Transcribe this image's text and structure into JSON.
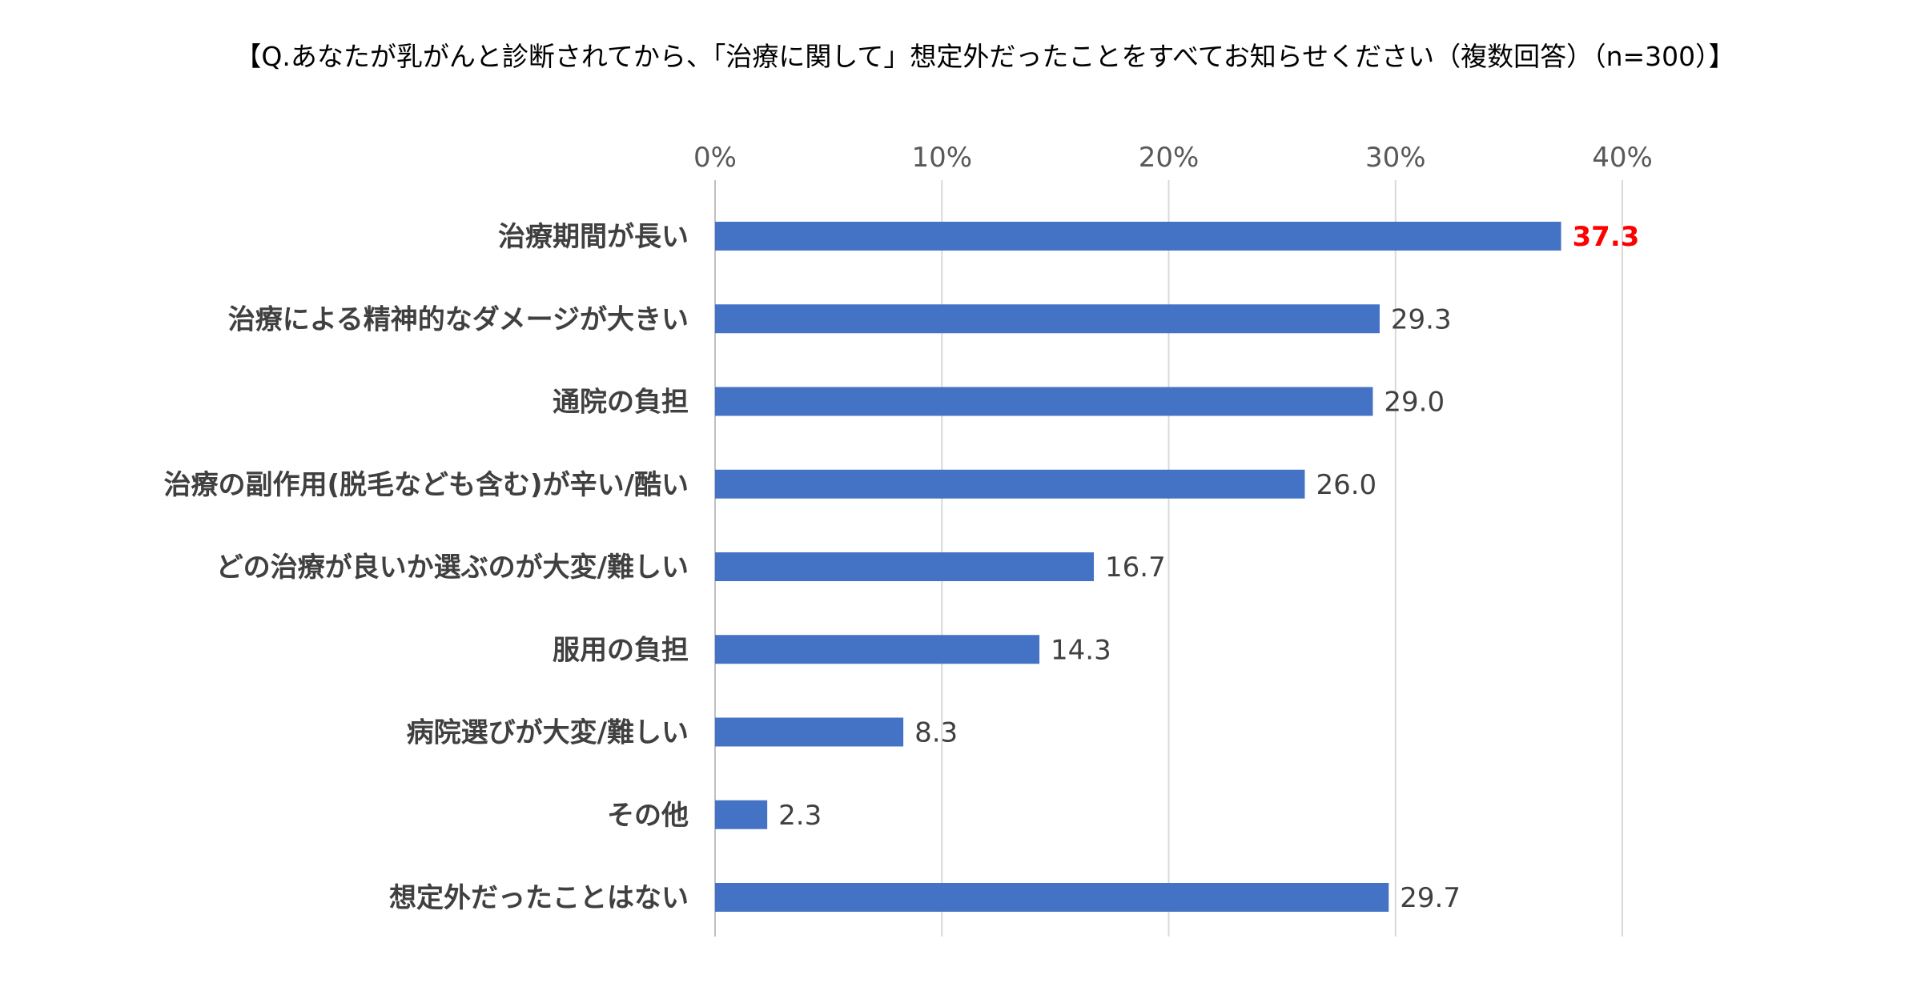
{
  "chart_data": {
    "type": "bar",
    "orientation": "horizontal",
    "title": "【Q.あなたが乳がんと診断されてから、「治療に関して」想定外だったことをすべてお知らせください（複数回答）（n=300）】",
    "categories": [
      "治療期間が長い",
      "治療による精神的なダメージが大きい",
      "通院の負担",
      "治療の副作用(脱毛なども含む)が辛い/酷い",
      "どの治療が良いか選ぶのが大変/難しい",
      "服用の負担",
      "病院選びが大変/難しい",
      "その他",
      "想定外だったことはない"
    ],
    "values": [
      37.3,
      29.3,
      29.0,
      26.0,
      16.7,
      14.3,
      8.3,
      2.3,
      29.7
    ],
    "value_labels": [
      "37.3",
      "29.3",
      "29.0",
      "26.0",
      "16.7",
      "14.3",
      "8.3",
      "2.3",
      "29.7"
    ],
    "highlight_index": 0,
    "xlim": [
      0,
      40
    ],
    "x_ticks": [
      0,
      10,
      20,
      30,
      40
    ],
    "x_tick_labels": [
      "0%",
      "10%",
      "20%",
      "30%",
      "40%"
    ],
    "axis_position": "top",
    "grid": true,
    "legend": "none",
    "colors": {
      "bar": "#4472c4",
      "highlight_label": "#ff0000",
      "label": "#404040",
      "tick": "#595959",
      "grid": "#d9d9d9"
    }
  }
}
